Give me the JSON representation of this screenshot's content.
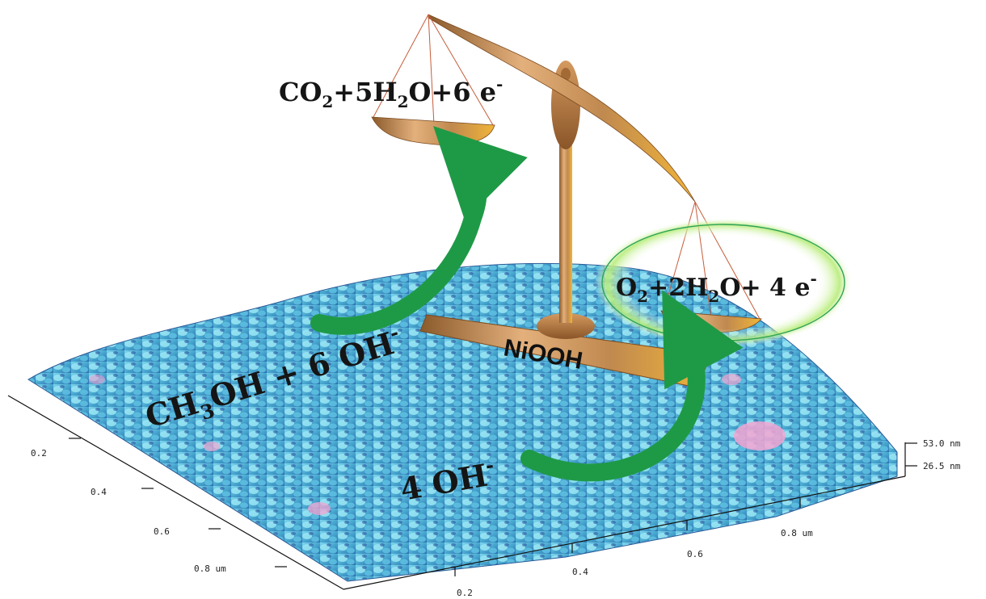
{
  "equations": {
    "top_pan": {
      "parts": [
        "CO",
        "2",
        "+5H",
        "2",
        "O+6 e",
        "-"
      ]
    },
    "right_pan": {
      "parts": [
        "O",
        "2",
        "+2H",
        "2",
        "O+ 4 e",
        "-"
      ]
    },
    "methanol": {
      "parts": [
        "CH",
        "3",
        "OH + 6 OH",
        "-"
      ]
    },
    "hydroxide": {
      "parts": [
        "4 OH",
        "-"
      ]
    }
  },
  "catalyst_label": "NiOOH",
  "afm_axes": {
    "left_axis_ticks": [
      "0.2",
      "0.4",
      "0.6",
      "0.8 um"
    ],
    "front_axis_ticks": [
      "0.2",
      "0.4",
      "0.6",
      "0.8 um"
    ],
    "z_axis_ticks": [
      "53.0 nm",
      "26.5 nm"
    ]
  },
  "colors": {
    "arrow_green": "#1e9a46",
    "highlight_glow": "#9ee05a",
    "scale_copper": "#c48a55",
    "surface_blue": "#4fb6d6",
    "surface_peak_pink": "#f3a6d2"
  }
}
